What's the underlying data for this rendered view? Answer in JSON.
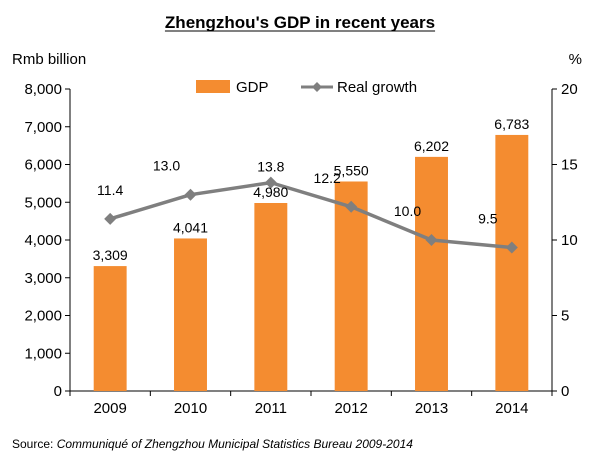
{
  "chart_data": {
    "type": "bar",
    "title": "Zhengzhou's GDP in recent years",
    "categories": [
      "2009",
      "2010",
      "2011",
      "2012",
      "2013",
      "2014"
    ],
    "series": [
      {
        "name": "GDP",
        "type": "bar",
        "axis": "left",
        "color": "#F48C30",
        "values": [
          3309,
          4041,
          4980,
          5550,
          6202,
          6783
        ],
        "labels": [
          "3,309",
          "4,041",
          "4,980",
          "5,550",
          "6,202",
          "6,783"
        ]
      },
      {
        "name": "Real growth",
        "type": "line",
        "axis": "right",
        "color": "#7F7F7F",
        "marker": "diamond",
        "values": [
          11.4,
          13.0,
          13.8,
          12.2,
          10.0,
          9.5
        ],
        "labels": [
          "11.4",
          "13.0",
          "13.8",
          "12.2",
          "10.0",
          "9.5"
        ]
      }
    ],
    "ylabel_left": "Rmb billion",
    "ylabel_right": "%",
    "ylim_left": [
      0,
      8000
    ],
    "ylim_right": [
      0,
      20
    ],
    "yticks_left": [
      "0",
      "1,000",
      "2,000",
      "3,000",
      "4,000",
      "5,000",
      "6,000",
      "7,000",
      "8,000"
    ],
    "yticks_right": [
      "0",
      "5",
      "10",
      "15",
      "20"
    ],
    "grid": false,
    "legend": "top-center"
  },
  "source": {
    "prefix": "Source: ",
    "text": "Communiqué of Zhengzhou Municipal Statistics Bureau 2009-2014"
  }
}
